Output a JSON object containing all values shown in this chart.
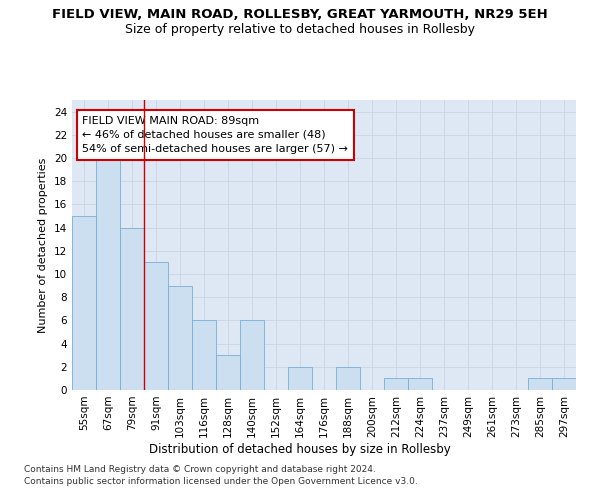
{
  "title": "FIELD VIEW, MAIN ROAD, ROLLESBY, GREAT YARMOUTH, NR29 5EH",
  "subtitle": "Size of property relative to detached houses in Rollesby",
  "xlabel": "Distribution of detached houses by size in Rollesby",
  "ylabel": "Number of detached properties",
  "bins": [
    "55sqm",
    "67sqm",
    "79sqm",
    "91sqm",
    "103sqm",
    "116sqm",
    "128sqm",
    "140sqm",
    "152sqm",
    "164sqm",
    "176sqm",
    "188sqm",
    "200sqm",
    "212sqm",
    "224sqm",
    "237sqm",
    "249sqm",
    "261sqm",
    "273sqm",
    "285sqm",
    "297sqm"
  ],
  "counts": [
    15,
    20,
    14,
    11,
    9,
    6,
    3,
    6,
    0,
    2,
    0,
    2,
    0,
    1,
    1,
    0,
    0,
    0,
    0,
    1,
    1
  ],
  "bar_color": "#ccdff0",
  "bar_edge_color": "#7aaed4",
  "vline_x": 2.5,
  "vline_color": "#cc0000",
  "annotation_line1": "FIELD VIEW MAIN ROAD: 89sqm",
  "annotation_line2": "← 46% of detached houses are smaller (48)",
  "annotation_line3": "54% of semi-detached houses are larger (57) →",
  "annotation_box_color": "#cc0000",
  "ylim": [
    0,
    25
  ],
  "yticks": [
    0,
    2,
    4,
    6,
    8,
    10,
    12,
    14,
    16,
    18,
    20,
    22,
    24
  ],
  "grid_color": "#c8d4e4",
  "bg_color": "#dde8f4",
  "footer_line1": "Contains HM Land Registry data © Crown copyright and database right 2024.",
  "footer_line2": "Contains public sector information licensed under the Open Government Licence v3.0.",
  "title_fontsize": 9.5,
  "subtitle_fontsize": 9,
  "xlabel_fontsize": 8.5,
  "ylabel_fontsize": 8,
  "tick_fontsize": 7.5,
  "annotation_fontsize": 8,
  "footer_fontsize": 6.5
}
